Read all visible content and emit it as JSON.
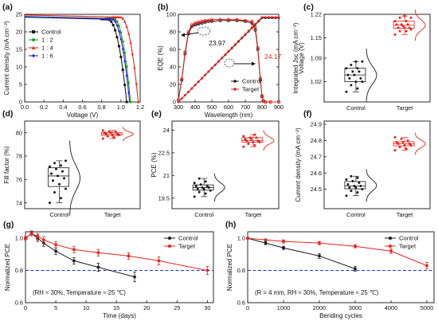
{
  "colors": {
    "black": "#1a1a1a",
    "red": "#e8231b",
    "green": "#19a51f",
    "magenta": "#f01fd4",
    "blue": "#2a1fe6",
    "reference_line": "#1f2fd6"
  },
  "chart_data": [
    {
      "id": "a",
      "panel_label": "(a)",
      "type": "line",
      "xlabel": "Voltage (V)",
      "ylabel": "Current density (mA cm⁻²)",
      "xlim": [
        0.0,
        1.2
      ],
      "ylim": [
        0,
        25
      ],
      "xticks": [
        "0.0",
        "0.2",
        "0.4",
        "0.6",
        "0.8",
        "1.0",
        "1.2"
      ],
      "yticks": [
        "0",
        "5",
        "10",
        "15",
        "20",
        "25"
      ],
      "legend_placement": "center-left",
      "series": [
        {
          "name": "Control",
          "color": "#1a1a1a",
          "marker": "square",
          "jsc": 24.2,
          "voc": 1.06,
          "vknee": 0.86
        },
        {
          "name": "1 : 2",
          "color": "#19a51f",
          "marker": "circle",
          "jsc": 24.4,
          "voc": 1.1,
          "vknee": 0.92
        },
        {
          "name": "1 : 4",
          "color": "#e8231b",
          "marker": "triangle",
          "jsc": 24.8,
          "voc": 1.18,
          "vknee": 0.99
        },
        {
          "name": "1 : 6",
          "color": "#2a1fe6",
          "marker": "diamond",
          "jsc": 24.3,
          "voc": 1.09,
          "vknee": 0.9
        }
      ]
    },
    {
      "id": "b",
      "panel_label": "(b)",
      "type": "line",
      "xlabel": "Wavelength (nm)",
      "ylabel": "EQE (%)",
      "ylabel_right": "Integrated Jsc (mA cm⁻²)",
      "xlim": [
        300,
        900
      ],
      "ylim": [
        0,
        100
      ],
      "xticks": [
        "300",
        "400",
        "500",
        "600",
        "700",
        "800",
        "900"
      ],
      "yticks": [
        "0",
        "20",
        "40",
        "60",
        "80",
        "100"
      ],
      "yticks_right": [
        "0",
        "5",
        "10",
        "15",
        "20",
        "25"
      ],
      "legend_placement": "bottom-right",
      "annotations": [
        {
          "text": "23.97",
          "color": "#1a1a1a"
        },
        {
          "text": "24.17",
          "color": "#e8231b"
        }
      ],
      "eqe_x": [
        300,
        320,
        340,
        360,
        380,
        400,
        420,
        440,
        460,
        480,
        500,
        550,
        600,
        650,
        700,
        740,
        760,
        775,
        790,
        800,
        810,
        820,
        850,
        900
      ],
      "series": [
        {
          "name": "Control",
          "color": "#1a1a1a",
          "eqe": [
            2,
            25,
            55,
            78,
            86,
            88,
            89,
            90,
            91,
            92,
            92,
            93,
            93,
            93,
            92,
            90,
            82,
            60,
            25,
            6,
            1,
            0,
            0,
            0
          ],
          "jsc_int": [
            0,
            23.97
          ]
        },
        {
          "name": "Target",
          "color": "#e8231b",
          "eqe": [
            2,
            26,
            57,
            80,
            88,
            90,
            91,
            92,
            93,
            93,
            94,
            94,
            94,
            94,
            93,
            92,
            85,
            62,
            27,
            7,
            1,
            0,
            0,
            0
          ],
          "jsc_int": [
            0,
            24.17
          ]
        }
      ]
    },
    {
      "id": "c",
      "panel_label": "(c)",
      "type": "scatter",
      "ylabel": "Voltage (V)",
      "ylim": [
        0.96,
        1.22
      ],
      "yticks": [
        "1.02",
        "1.09",
        "1.15",
        "1.22"
      ],
      "categories": [
        "Control",
        "Target"
      ],
      "values": [
        [
          0.99,
          1.0,
          1.01,
          1.02,
          1.02,
          1.03,
          1.03,
          1.04,
          1.04,
          1.05,
          1.05,
          1.06,
          1.06,
          1.07,
          1.08,
          1.08
        ],
        [
          1.16,
          1.17,
          1.17,
          1.175,
          1.18,
          1.18,
          1.18,
          1.185,
          1.19,
          1.19,
          1.19,
          1.2,
          1.2,
          1.21,
          1.21,
          1.215
        ]
      ]
    },
    {
      "id": "d",
      "panel_label": "(d)",
      "type": "scatter",
      "ylabel": "Fill factor (%)",
      "ylim": [
        73.5,
        81
      ],
      "yticks": [
        "74",
        "76",
        "78",
        "80"
      ],
      "categories": [
        "Control",
        "Target"
      ],
      "values": [
        [
          74.0,
          74.4,
          74.9,
          75.2,
          75.6,
          75.9,
          76.1,
          76.3,
          76.5,
          76.7,
          76.9,
          77.1,
          77.2,
          77.4,
          77.6
        ],
        [
          79.5,
          79.6,
          79.7,
          79.8,
          79.8,
          79.9,
          79.9,
          80.0,
          80.0,
          80.1,
          80.1,
          80.2
        ]
      ]
    },
    {
      "id": "e",
      "panel_label": "(e)",
      "type": "scatter",
      "ylabel": "PCE (%)",
      "ylim": [
        18.8,
        24.6
      ],
      "yticks": [
        "19.5",
        "21",
        "22.5",
        "24"
      ],
      "categories": [
        "Control",
        "Target"
      ],
      "values": [
        [
          19.6,
          19.8,
          19.9,
          20.0,
          20.1,
          20.1,
          20.2,
          20.2,
          20.3,
          20.3,
          20.4,
          20.5,
          20.6,
          20.8
        ],
        [
          22.9,
          23.0,
          23.1,
          23.2,
          23.2,
          23.3,
          23.3,
          23.4,
          23.4,
          23.5,
          23.5,
          23.6,
          23.7
        ]
      ]
    },
    {
      "id": "f",
      "panel_label": "(f)",
      "type": "scatter",
      "ylabel": "Current density (mA cm⁻²)",
      "ylim": [
        24.38,
        24.92
      ],
      "yticks": [
        "24.5",
        "24.6",
        "24.7",
        "24.8",
        "24.9"
      ],
      "categories": [
        "Control",
        "Target"
      ],
      "values": [
        [
          24.46,
          24.48,
          24.49,
          24.5,
          24.51,
          24.51,
          24.52,
          24.52,
          24.53,
          24.54,
          24.55,
          24.56,
          24.57,
          24.58
        ],
        [
          24.74,
          24.75,
          24.76,
          24.77,
          24.77,
          24.78,
          24.78,
          24.79,
          24.79,
          24.8,
          24.81,
          24.82
        ]
      ]
    },
    {
      "id": "g",
      "panel_label": "(g)",
      "type": "line",
      "xlabel": "Time (days)",
      "ylabel": "Normalized PCE",
      "xlim": [
        0,
        31
      ],
      "ylim": [
        0.6,
        1.04
      ],
      "xticks": [
        "0",
        "5",
        "10",
        "15",
        "20",
        "25",
        "30"
      ],
      "yticks": [
        "0.6",
        "0.8",
        "1.0"
      ],
      "reference_y": 0.8,
      "note": "(RH ≈ 30%, Temperature ≈ 25 ℃)",
      "legend_placement": "top-right",
      "series": [
        {
          "name": "Control",
          "color": "#1a1a1a",
          "x": [
            0,
            1,
            2,
            3,
            5,
            8,
            12,
            18
          ],
          "y": [
            1.0,
            1.03,
            1.0,
            0.97,
            0.92,
            0.86,
            0.82,
            0.76
          ],
          "err": [
            0.01,
            0.015,
            0.02,
            0.02,
            0.02,
            0.02,
            0.025,
            0.03
          ]
        },
        {
          "name": "Target",
          "color": "#e8231b",
          "x": [
            0,
            1,
            2,
            3,
            5,
            8,
            12,
            17,
            22,
            30
          ],
          "y": [
            1.0,
            1.03,
            1.01,
            0.99,
            0.96,
            0.93,
            0.91,
            0.89,
            0.86,
            0.8
          ],
          "err": [
            0.01,
            0.015,
            0.02,
            0.02,
            0.02,
            0.02,
            0.02,
            0.02,
            0.025,
            0.025
          ]
        }
      ]
    },
    {
      "id": "h",
      "panel_label": "(h)",
      "type": "line",
      "xlabel": "Bending cycles",
      "ylabel": "Normalized PCE",
      "xlim": [
        0,
        5200
      ],
      "ylim": [
        0.6,
        1.04
      ],
      "xticks": [
        "0",
        "1000",
        "2000",
        "3000",
        "4000",
        "5000"
      ],
      "yticks": [
        "0.6",
        "0.8",
        "1.0"
      ],
      "reference_y": 0.8,
      "note": "(R = 4 mm, RH ≈ 30%, Temperature ≈ 25 ℃)",
      "legend_placement": "top-right",
      "series": [
        {
          "name": "Control",
          "color": "#1a1a1a",
          "x": [
            0,
            500,
            1000,
            2000,
            3000
          ],
          "y": [
            1.0,
            0.97,
            0.94,
            0.89,
            0.81
          ],
          "err": [
            0.005,
            0.01,
            0.01,
            0.015,
            0.015
          ]
        },
        {
          "name": "Target",
          "color": "#e8231b",
          "x": [
            0,
            500,
            1000,
            2000,
            3000,
            4000,
            5000
          ],
          "y": [
            1.0,
            0.99,
            0.98,
            0.97,
            0.95,
            0.92,
            0.83
          ],
          "err": [
            0.005,
            0.005,
            0.01,
            0.01,
            0.01,
            0.015,
            0.02
          ]
        }
      ]
    }
  ]
}
